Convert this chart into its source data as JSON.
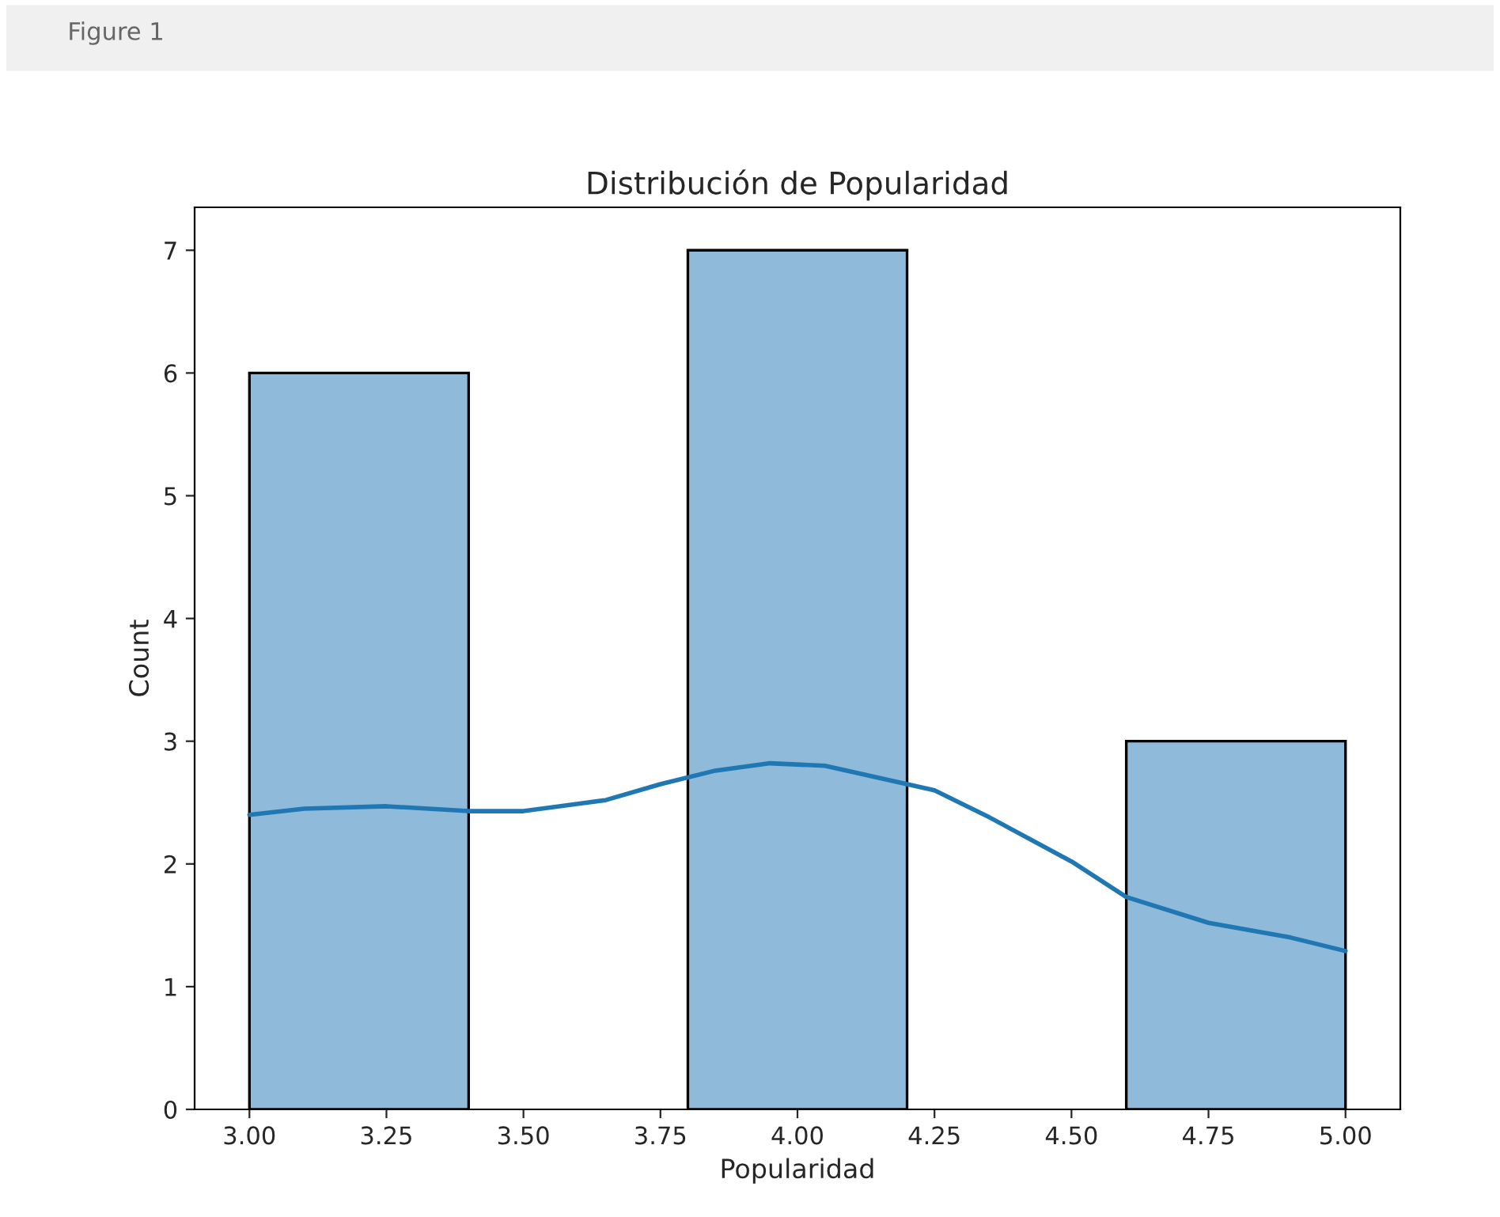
{
  "chart_data": {
    "type": "histogram",
    "title": "Distribución de Popularidad",
    "xlabel": "Popularidad",
    "ylabel": "Count",
    "annotations": [
      "Figure 1"
    ],
    "series": [
      {
        "color": "#8fbad9",
        "bins": [
          3.0,
          3.4,
          3.8,
          4.2,
          4.6,
          5.0
        ],
        "values": [
          6,
          0,
          7,
          0,
          3
        ]
      },
      {
        "type": "line",
        "color": "#1f77b4",
        "x": [
          3.0,
          3.1,
          3.25,
          3.4,
          3.5,
          3.65,
          3.75,
          3.85,
          3.95,
          4.05,
          4.15,
          4.25,
          4.35,
          4.5,
          4.6,
          4.75,
          4.9,
          5.0
        ],
        "values": [
          2.4,
          2.45,
          2.47,
          2.43,
          2.43,
          2.52,
          2.65,
          2.76,
          2.82,
          2.8,
          2.7,
          2.6,
          2.38,
          2.02,
          1.73,
          1.52,
          1.4,
          1.29
        ]
      }
    ],
    "xlim": [
      2.9,
      5.1
    ],
    "ylim": [
      0,
      7.35
    ],
    "xticks": [
      {
        "value": 3.0,
        "label": "3.00"
      },
      {
        "value": 3.25,
        "label": "3.25"
      },
      {
        "value": 3.5,
        "label": "3.50"
      },
      {
        "value": 3.75,
        "label": "3.75"
      },
      {
        "value": 4.0,
        "label": "4.00"
      },
      {
        "value": 4.25,
        "label": "4.25"
      },
      {
        "value": 4.5,
        "label": "4.50"
      },
      {
        "value": 4.75,
        "label": "4.75"
      },
      {
        "value": 5.0,
        "label": "5.00"
      }
    ],
    "yticks": [
      0,
      1,
      2,
      3,
      4,
      5,
      6,
      7
    ],
    "grid": false,
    "legend": false
  }
}
